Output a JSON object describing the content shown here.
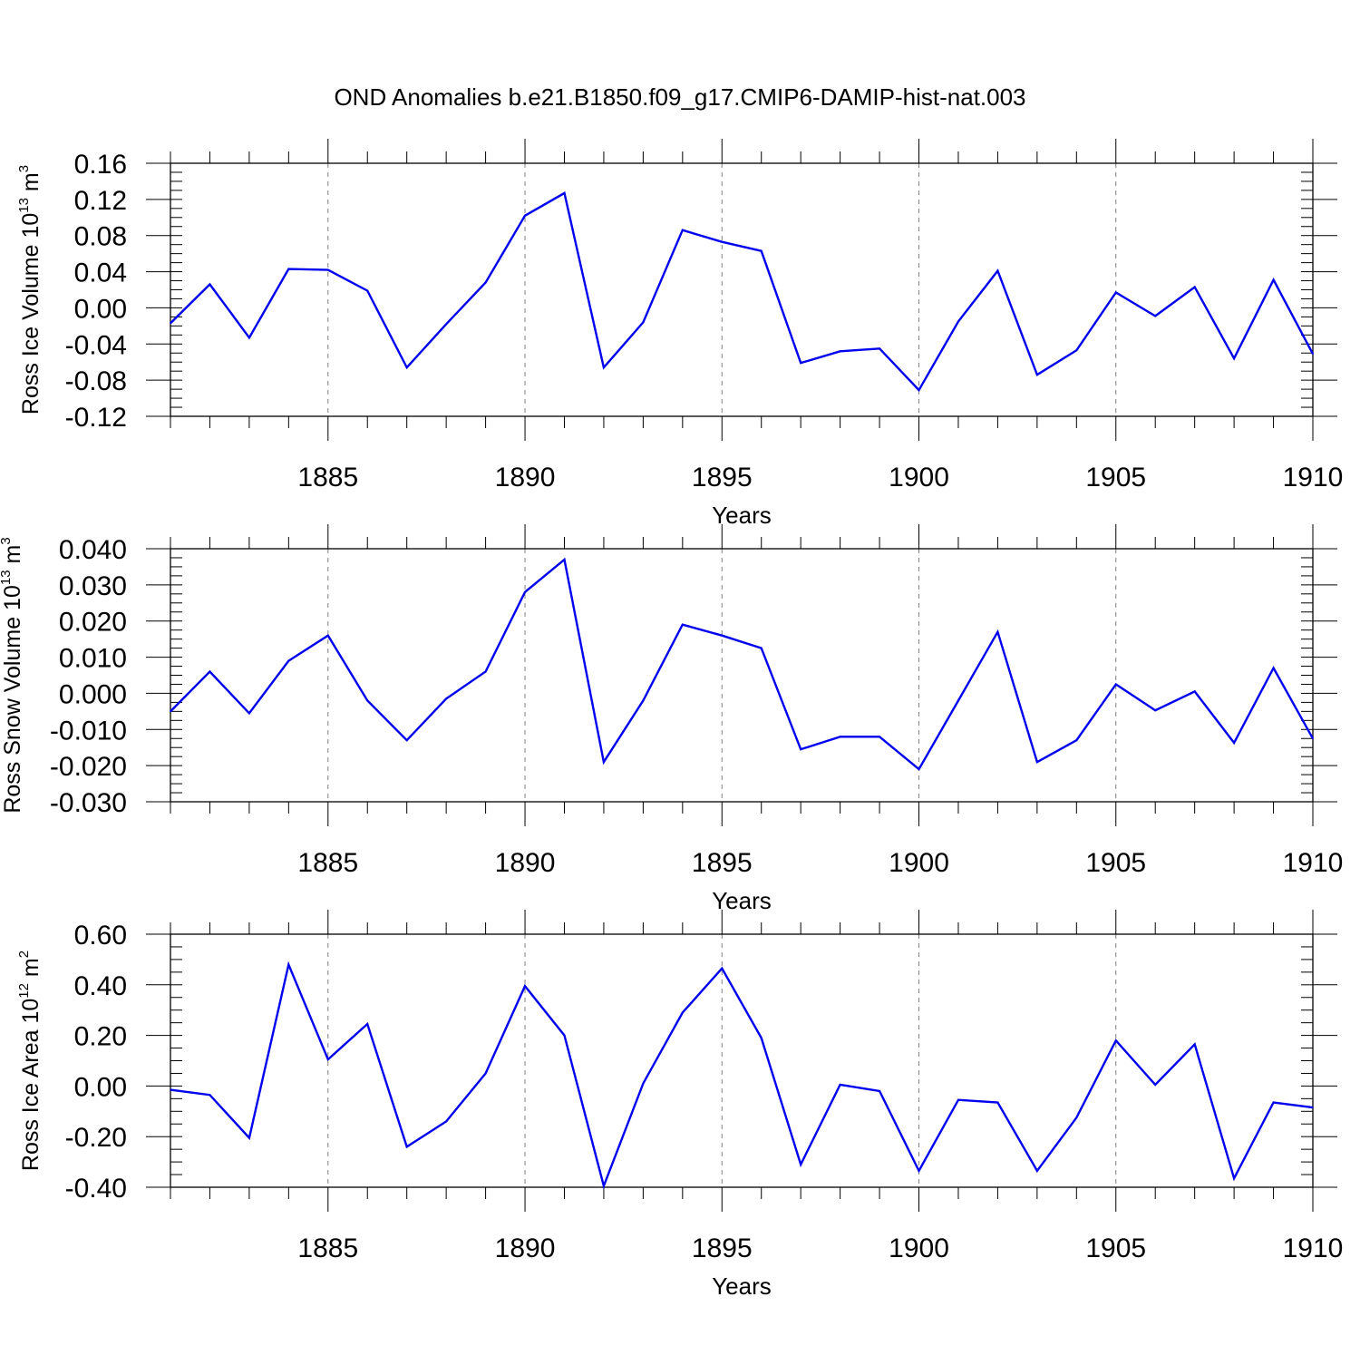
{
  "title": "OND Anomalies b.e21.B1850.f09_g17.CMIP6-DAMIP-hist-nat.003",
  "colors": {
    "line": "#0000ee",
    "axis": "#000000",
    "grid": "#808080"
  },
  "chart_data": [
    {
      "type": "line",
      "title": "",
      "xlabel": "Years",
      "ylabel": {
        "text": "Ross Ice Volume 10",
        "sup": "13",
        "unit": " m",
        "unit_sup": "3"
      },
      "xlim": [
        1881,
        1910
      ],
      "ylim": [
        -0.12,
        0.16
      ],
      "x_ticks": [
        1885,
        1890,
        1895,
        1900,
        1905,
        1910
      ],
      "x_tick_labels": [
        "1885",
        "1890",
        "1895",
        "1900",
        "1905",
        "1910"
      ],
      "y_ticks": [
        -0.12,
        -0.08,
        -0.04,
        0.0,
        0.04,
        0.08,
        0.12,
        0.16
      ],
      "y_tick_labels": [
        "-0.12",
        "-0.08",
        "-0.04",
        "0.00",
        "0.04",
        "0.08",
        "0.12",
        "0.16"
      ],
      "y_minor_step": 0.01,
      "grid": "vertical dashed at major x ticks",
      "x": [
        1881,
        1882,
        1883,
        1884,
        1885,
        1886,
        1887,
        1888,
        1889,
        1890,
        1891,
        1892,
        1893,
        1894,
        1895,
        1896,
        1897,
        1898,
        1899,
        1900,
        1901,
        1902,
        1903,
        1904,
        1905,
        1906,
        1907,
        1908,
        1909,
        1910
      ],
      "series": [
        {
          "values": [
            -0.017,
            0.026,
            -0.033,
            0.043,
            0.042,
            0.019,
            -0.066,
            -0.018,
            0.028,
            0.102,
            0.127,
            -0.066,
            -0.016,
            0.086,
            0.073,
            0.063,
            -0.061,
            -0.048,
            -0.045,
            -0.091,
            -0.015,
            0.041,
            -0.074,
            -0.047,
            0.017,
            -0.009,
            0.023,
            -0.056,
            0.031,
            -0.051
          ]
        }
      ]
    },
    {
      "type": "line",
      "title": "",
      "xlabel": "Years",
      "ylabel": {
        "text": "Ross Snow Volume 10",
        "sup": "13",
        "unit": " m",
        "unit_sup": "3"
      },
      "xlim": [
        1881,
        1910
      ],
      "ylim": [
        -0.03,
        0.04
      ],
      "x_ticks": [
        1885,
        1890,
        1895,
        1900,
        1905,
        1910
      ],
      "x_tick_labels": [
        "1885",
        "1890",
        "1895",
        "1900",
        "1905",
        "1910"
      ],
      "y_ticks": [
        -0.03,
        -0.02,
        -0.01,
        0.0,
        0.01,
        0.02,
        0.03,
        0.04
      ],
      "y_tick_labels": [
        "-0.030",
        "-0.020",
        "-0.010",
        "0.000",
        "0.010",
        "0.020",
        "0.030",
        "0.040"
      ],
      "y_minor_step": 0.0025,
      "grid": "vertical dashed at major x ticks",
      "x": [
        1881,
        1882,
        1883,
        1884,
        1885,
        1886,
        1887,
        1888,
        1889,
        1890,
        1891,
        1892,
        1893,
        1894,
        1895,
        1896,
        1897,
        1898,
        1899,
        1900,
        1901,
        1902,
        1903,
        1904,
        1905,
        1906,
        1907,
        1908,
        1909,
        1910
      ],
      "series": [
        {
          "values": [
            -0.005,
            0.006,
            -0.0055,
            0.009,
            0.016,
            -0.002,
            -0.013,
            -0.0015,
            0.006,
            0.028,
            0.037,
            -0.019,
            -0.002,
            0.019,
            0.016,
            0.0125,
            -0.0155,
            -0.012,
            -0.012,
            -0.021,
            -0.002,
            0.017,
            -0.019,
            -0.013,
            0.0025,
            -0.0047,
            0.0005,
            -0.0137,
            0.007,
            -0.0125
          ]
        }
      ]
    },
    {
      "type": "line",
      "title": "",
      "xlabel": "Years",
      "ylabel": {
        "text": "Ross Ice Area 10",
        "sup": "12",
        "unit": " m",
        "unit_sup": "2"
      },
      "xlim": [
        1881,
        1910
      ],
      "ylim": [
        -0.4,
        0.6
      ],
      "x_ticks": [
        1885,
        1890,
        1895,
        1900,
        1905,
        1910
      ],
      "x_tick_labels": [
        "1885",
        "1890",
        "1895",
        "1900",
        "1905",
        "1910"
      ],
      "y_ticks": [
        -0.4,
        -0.2,
        0.0,
        0.2,
        0.4,
        0.6
      ],
      "y_tick_labels": [
        "-0.40",
        "-0.20",
        "0.00",
        "0.20",
        "0.40",
        "0.60"
      ],
      "y_minor_step": 0.05,
      "grid": "vertical dashed at major x ticks",
      "x": [
        1881,
        1882,
        1883,
        1884,
        1885,
        1886,
        1887,
        1888,
        1889,
        1890,
        1891,
        1892,
        1893,
        1894,
        1895,
        1896,
        1897,
        1898,
        1899,
        1900,
        1901,
        1902,
        1903,
        1904,
        1905,
        1906,
        1907,
        1908,
        1909,
        1910
      ],
      "series": [
        {
          "values": [
            -0.015,
            -0.035,
            -0.205,
            0.48,
            0.105,
            0.245,
            -0.24,
            -0.14,
            0.05,
            0.395,
            0.2,
            -0.395,
            0.01,
            0.29,
            0.465,
            0.19,
            -0.31,
            0.005,
            -0.02,
            -0.335,
            -0.055,
            -0.065,
            -0.335,
            -0.125,
            0.18,
            0.005,
            0.165,
            -0.365,
            -0.065,
            -0.085
          ]
        }
      ]
    }
  ]
}
